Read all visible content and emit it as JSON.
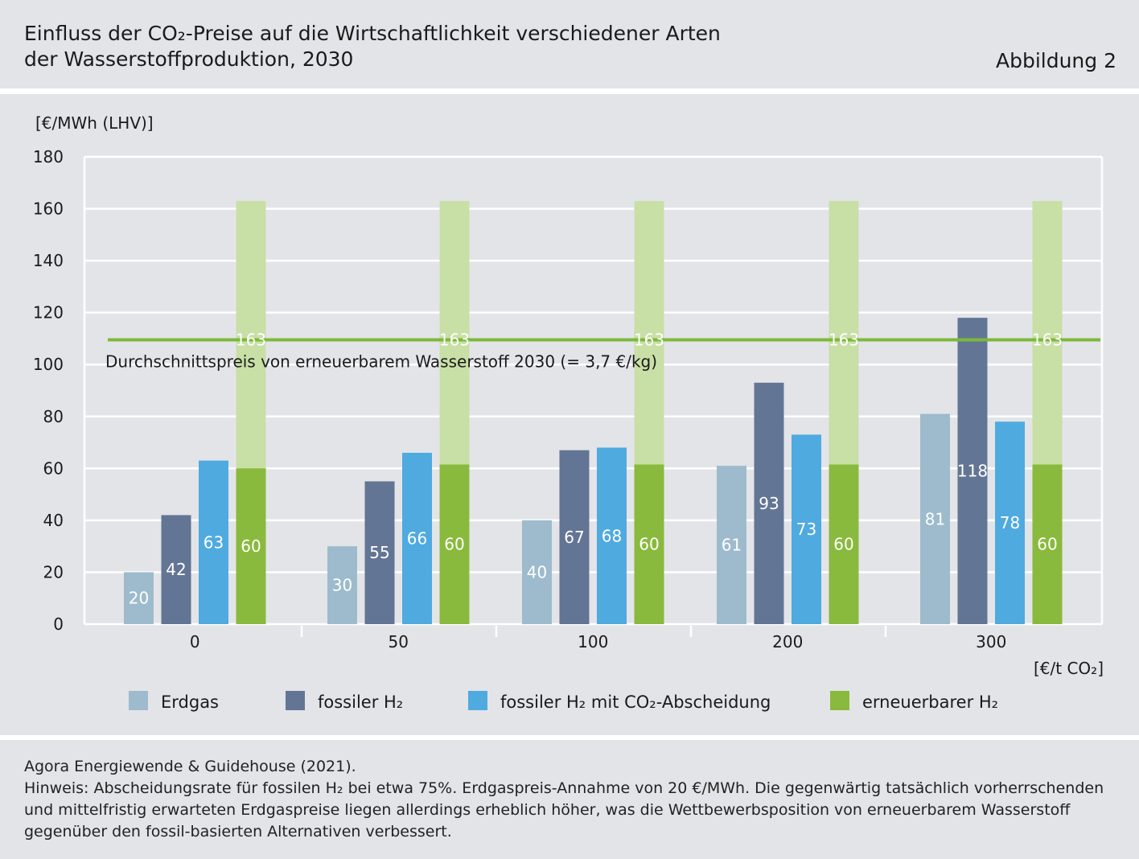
{
  "header": {
    "title_line1": "Einfluss der CO₂-Preise auf die Wirtschaftlichkeit verschiedener Arten",
    "title_line2": "der Wasserstoffproduktion, 2030",
    "figure_label": "Abbildung 2"
  },
  "footer": {
    "source": "Agora Energiewende & Guidehouse (2021).",
    "note": "Hinweis: Abscheidungsrate für fossilen H₂ bei etwa 75%. Erdgaspreis-Annahme von 20 €/MWh. Die gegenwärtig tatsächlich vorherrschenden und mittelfristig erwarteten Erdgaspreise liegen allerdings erheblich höher, was die Wettbewerbsposition von erneuerbarem Wasserstoff gegenüber den fossil-basierten Alternativen verbessert."
  },
  "chart_data": {
    "type": "bar",
    "ylabel": "[€/MWh (LHV)]",
    "xlabel": "[€/t CO₂]",
    "ylim": [
      0,
      180
    ],
    "yticks": [
      0,
      20,
      40,
      60,
      80,
      100,
      120,
      140,
      160,
      180
    ],
    "grid": true,
    "categories": [
      "0",
      "50",
      "100",
      "200",
      "300"
    ],
    "series": [
      {
        "name": "Erdgas",
        "color": "#9dbbcd",
        "values": [
          20,
          30,
          40,
          61,
          81
        ]
      },
      {
        "name": "fossiler H₂",
        "color": "#637594",
        "values": [
          42,
          55,
          67,
          93,
          118
        ]
      },
      {
        "name": "fossiler H₂ mit CO₂-Abscheidung",
        "color": "#4faadf",
        "values": [
          63,
          66,
          68,
          73,
          78
        ]
      },
      {
        "name": "erneuerbarer H₂",
        "color": "#89ba3d",
        "values": [
          60,
          60,
          60,
          60,
          60
        ],
        "drawn_heights": [
          60,
          61.5,
          61.5,
          61.5,
          61.5
        ],
        "range_upper": [
          163,
          163,
          163,
          163,
          163
        ],
        "range_color": "#c8dfa6"
      }
    ],
    "reference_line": {
      "value": 109.5,
      "label": "Durchschnittspreis von erneuerbarem Wasserstoff 2030 (= 3,7 €/kg)",
      "color": "#7cb83a"
    },
    "legend_position": "bottom"
  }
}
